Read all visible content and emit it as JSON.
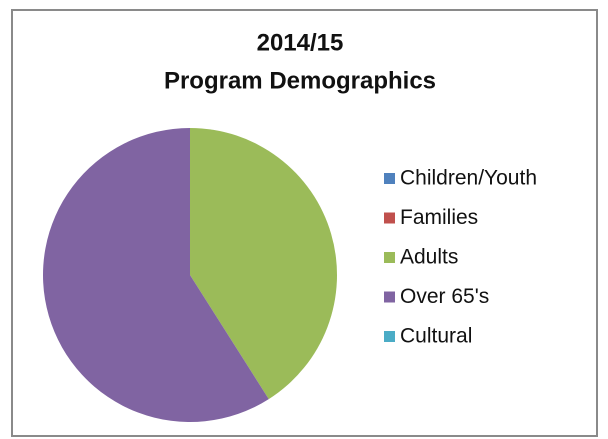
{
  "chart_data": {
    "type": "pie",
    "title": [
      "2014/15",
      "Program Demographics"
    ],
    "categories": [
      "Children/Youth",
      "Families",
      "Adults",
      "Over 65's",
      "Cultural"
    ],
    "values": [
      0,
      0,
      41,
      59,
      0
    ],
    "colors": [
      "#4f81bd",
      "#c0504d",
      "#9bbb59",
      "#8064a2",
      "#4bacc6"
    ],
    "legend": "right"
  }
}
